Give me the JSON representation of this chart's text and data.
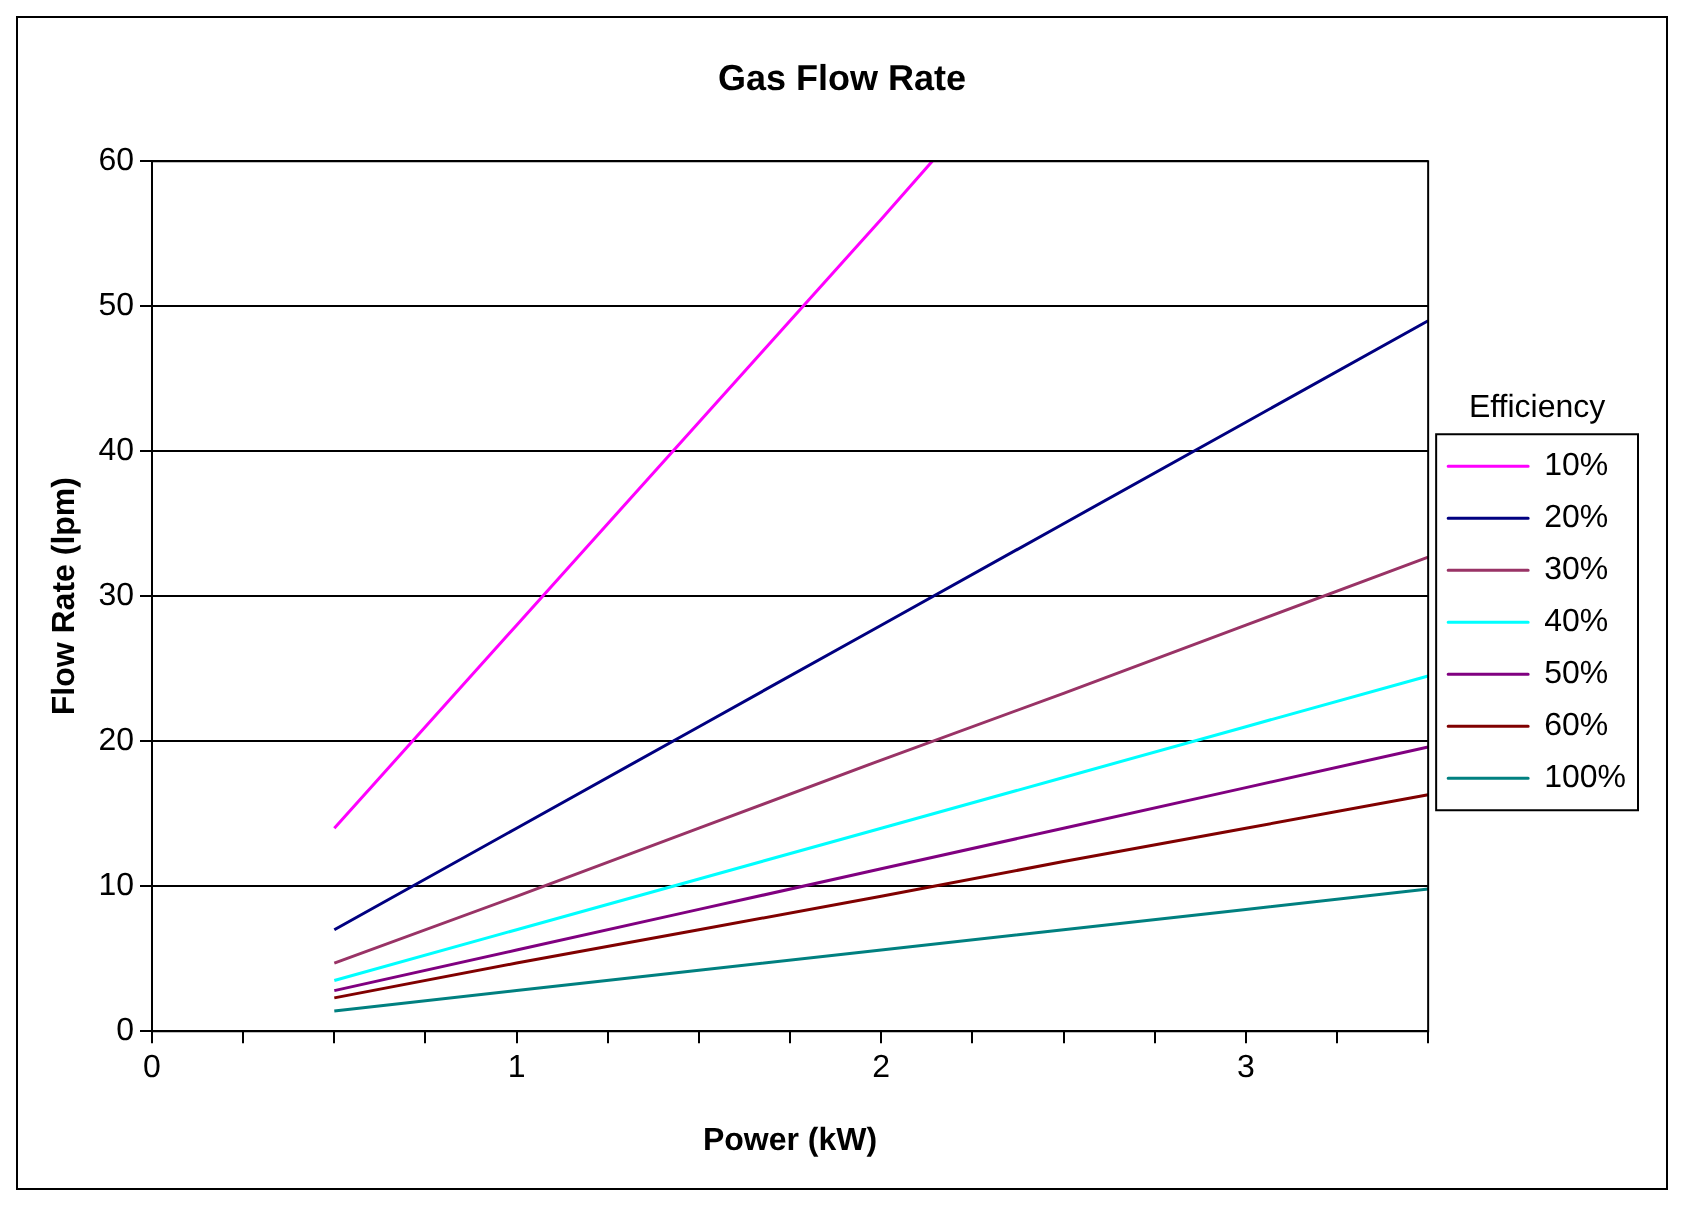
{
  "chart_data": {
    "type": "line",
    "title": "Gas Flow Rate",
    "xlabel": "Power (kW)",
    "ylabel": "Flow Rate (lpm)",
    "legend_title": "Efficiency",
    "legend": "right",
    "grid": "y",
    "marker": "none",
    "line_style": "solid",
    "x": [
      0.5,
      1,
      1.5,
      2,
      2.5,
      3,
      3.5
    ],
    "xlim": [
      0,
      3.5
    ],
    "xticks": [
      0,
      {
        "value": 0.25,
        "label": null
      },
      {
        "value": 0.5,
        "label": null
      },
      {
        "value": 0.75,
        "label": null
      },
      1,
      {
        "value": 1.25,
        "label": null
      },
      {
        "value": 1.5,
        "label": null
      },
      {
        "value": 1.75,
        "label": null
      },
      2,
      {
        "value": 2.25,
        "label": null
      },
      {
        "value": 2.5,
        "label": null
      },
      {
        "value": 2.75,
        "label": null
      },
      3,
      {
        "value": 3.25,
        "label": null
      },
      {
        "value": 3.5,
        "label": null
      }
    ],
    "ylim": [
      0,
      60
    ],
    "yticks": [
      0,
      10,
      20,
      30,
      40,
      50,
      60
    ],
    "series": [
      {
        "name": "10%",
        "color": "#ff00ff",
        "x": [
          0.5,
          1,
          1.5,
          2,
          2.14
        ],
        "values": [
          14,
          28,
          42,
          56,
          60
        ]
      },
      {
        "name": "20%",
        "color": "#000080",
        "values": [
          7,
          14,
          21,
          28,
          35,
          42,
          49
        ]
      },
      {
        "name": "30%",
        "color": "#993366",
        "values": [
          4.7,
          9.3,
          14,
          18.7,
          23.3,
          28,
          32.7
        ]
      },
      {
        "name": "40%",
        "color": "#00ffff",
        "values": [
          3.5,
          7,
          10.5,
          14,
          17.5,
          21,
          24.5
        ]
      },
      {
        "name": "50%",
        "color": "#800080",
        "values": [
          2.8,
          5.6,
          8.4,
          11.2,
          14,
          16.8,
          19.6
        ]
      },
      {
        "name": "60%",
        "color": "#800000",
        "values": [
          2.3,
          4.7,
          7,
          9.3,
          11.7,
          14,
          16.3
        ]
      },
      {
        "name": "100%",
        "color": "#008080",
        "values": [
          1.4,
          2.8,
          4.2,
          5.6,
          7,
          8.4,
          9.8
        ]
      }
    ]
  }
}
